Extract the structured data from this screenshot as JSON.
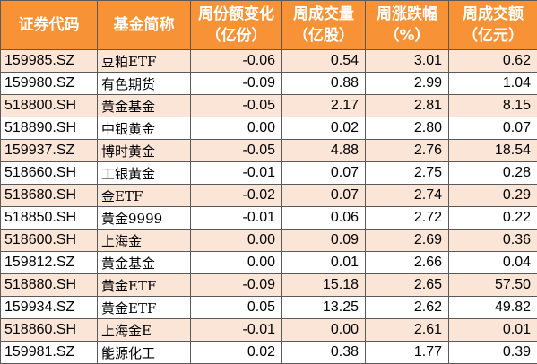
{
  "headers": {
    "code": "证券代码",
    "name": "基金简称",
    "share_change": [
      "周份额变化",
      "（亿份）"
    ],
    "volume": [
      "周成交量",
      "（亿股）"
    ],
    "change_pct": [
      "周涨跌幅",
      "（%）"
    ],
    "amount": [
      "周成交额",
      "（亿元）"
    ]
  },
  "rows": [
    {
      "code": "159985.SZ",
      "name": "豆粕ETF",
      "share_change": "-0.06",
      "volume": "0.54",
      "change_pct": "3.01",
      "amount": "0.62"
    },
    {
      "code": "159980.SZ",
      "name": "有色期货",
      "share_change": "-0.09",
      "volume": "0.88",
      "change_pct": "2.99",
      "amount": "1.04"
    },
    {
      "code": "518800.SH",
      "name": "黄金基金",
      "share_change": "-0.05",
      "volume": "2.17",
      "change_pct": "2.81",
      "amount": "8.15"
    },
    {
      "code": "518890.SH",
      "name": "中银黄金",
      "share_change": "0.00",
      "volume": "0.02",
      "change_pct": "2.80",
      "amount": "0.07"
    },
    {
      "code": "159937.SZ",
      "name": "博时黄金",
      "share_change": "-0.05",
      "volume": "4.88",
      "change_pct": "2.76",
      "amount": "18.54"
    },
    {
      "code": "518660.SH",
      "name": "工银黄金",
      "share_change": "-0.01",
      "volume": "0.07",
      "change_pct": "2.75",
      "amount": "0.28"
    },
    {
      "code": "518680.SH",
      "name": "金ETF",
      "share_change": "-0.02",
      "volume": "0.07",
      "change_pct": "2.74",
      "amount": "0.29"
    },
    {
      "code": "518850.SH",
      "name": "黄金9999",
      "share_change": "-0.01",
      "volume": "0.06",
      "change_pct": "2.72",
      "amount": "0.22"
    },
    {
      "code": "518600.SH",
      "name": "上海金",
      "share_change": "0.00",
      "volume": "0.09",
      "change_pct": "2.69",
      "amount": "0.36"
    },
    {
      "code": "159812.SZ",
      "name": "黄金基金",
      "share_change": "0.00",
      "volume": "0.01",
      "change_pct": "2.66",
      "amount": "0.04"
    },
    {
      "code": "518880.SH",
      "name": "黄金ETF",
      "share_change": "-0.09",
      "volume": "15.18",
      "change_pct": "2.65",
      "amount": "57.50"
    },
    {
      "code": "159934.SZ",
      "name": "黄金ETF",
      "share_change": "0.05",
      "volume": "13.25",
      "change_pct": "2.62",
      "amount": "49.82"
    },
    {
      "code": "518860.SH",
      "name": "上海金E",
      "share_change": "-0.01",
      "volume": "0.00",
      "change_pct": "2.61",
      "amount": "0.01"
    },
    {
      "code": "159981.SZ",
      "name": "能源化工",
      "share_change": "0.02",
      "volume": "0.38",
      "change_pct": "1.77",
      "amount": "0.39"
    }
  ]
}
